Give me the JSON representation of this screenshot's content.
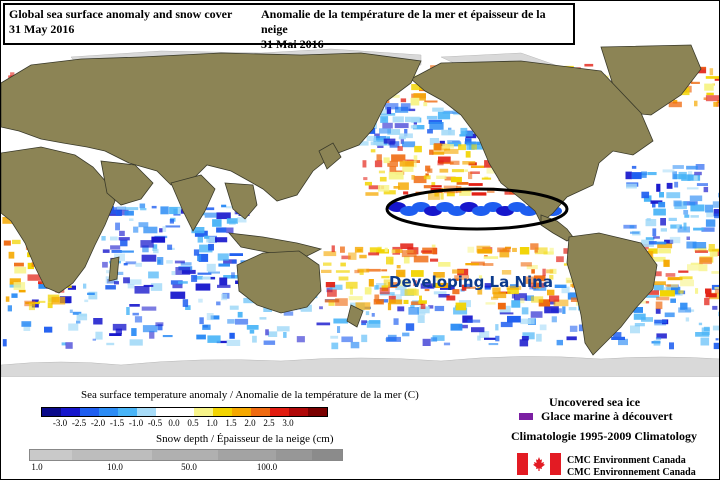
{
  "title": {
    "en_line1": "Global sea surface anomaly and snow cover",
    "en_line2": "31 May 2016",
    "fr_line1": "Anomalie de la température de la mer et épaisseur de la neige",
    "fr_line2": "31 Mai 2016"
  },
  "annotation": {
    "label": "Developing La Nina"
  },
  "legend": {
    "sst_title": "Sea surface temperature anomaly / Anomalie de la température de la mer (C)",
    "sst_ticks": [
      "-3.0",
      "-2.5",
      "-2.0",
      "-1.5",
      "-1.0",
      "-0.5",
      "0.0",
      "0.5",
      "1.0",
      "1.5",
      "2.0",
      "2.5",
      "3.0"
    ],
    "sst_colors": [
      "#0a0a8a",
      "#1616cc",
      "#1e5ef0",
      "#2c8cf5",
      "#48b4f7",
      "#a8dcf8",
      "#ffffff",
      "#ffffff",
      "#f7f48a",
      "#f2d400",
      "#f5a800",
      "#ef6a10",
      "#e21c10",
      "#b00808",
      "#7a0000"
    ],
    "snow_title": "Snow depth / Épaisseur de la neige (cm)",
    "snow_ticks": [
      "1.0",
      "10.0",
      "50.0",
      "100.0"
    ],
    "snow_colors": [
      "#c9c9c9",
      "#bdbdbd",
      "#b0b0b0",
      "#a3a3a3",
      "#979797",
      "#8b8b8b"
    ],
    "ice_en": "Uncovered sea ice",
    "ice_fr": "Glace marine à découvert",
    "ice_color": "#7b1fa2",
    "climatology": "Climatologie 1995-2009 Climatology",
    "org_en": "CMC Environment Canada",
    "org_fr": "CMC Environnement Canada",
    "flag_red": "#e31b23"
  },
  "colors": {
    "land": "#8c8455",
    "land_border": "#3a3a2a",
    "ice": "#d9d9d9",
    "ocean": "#ffffff",
    "annotation_ring": "#000000",
    "annotation_text": "#0c3a8c"
  }
}
